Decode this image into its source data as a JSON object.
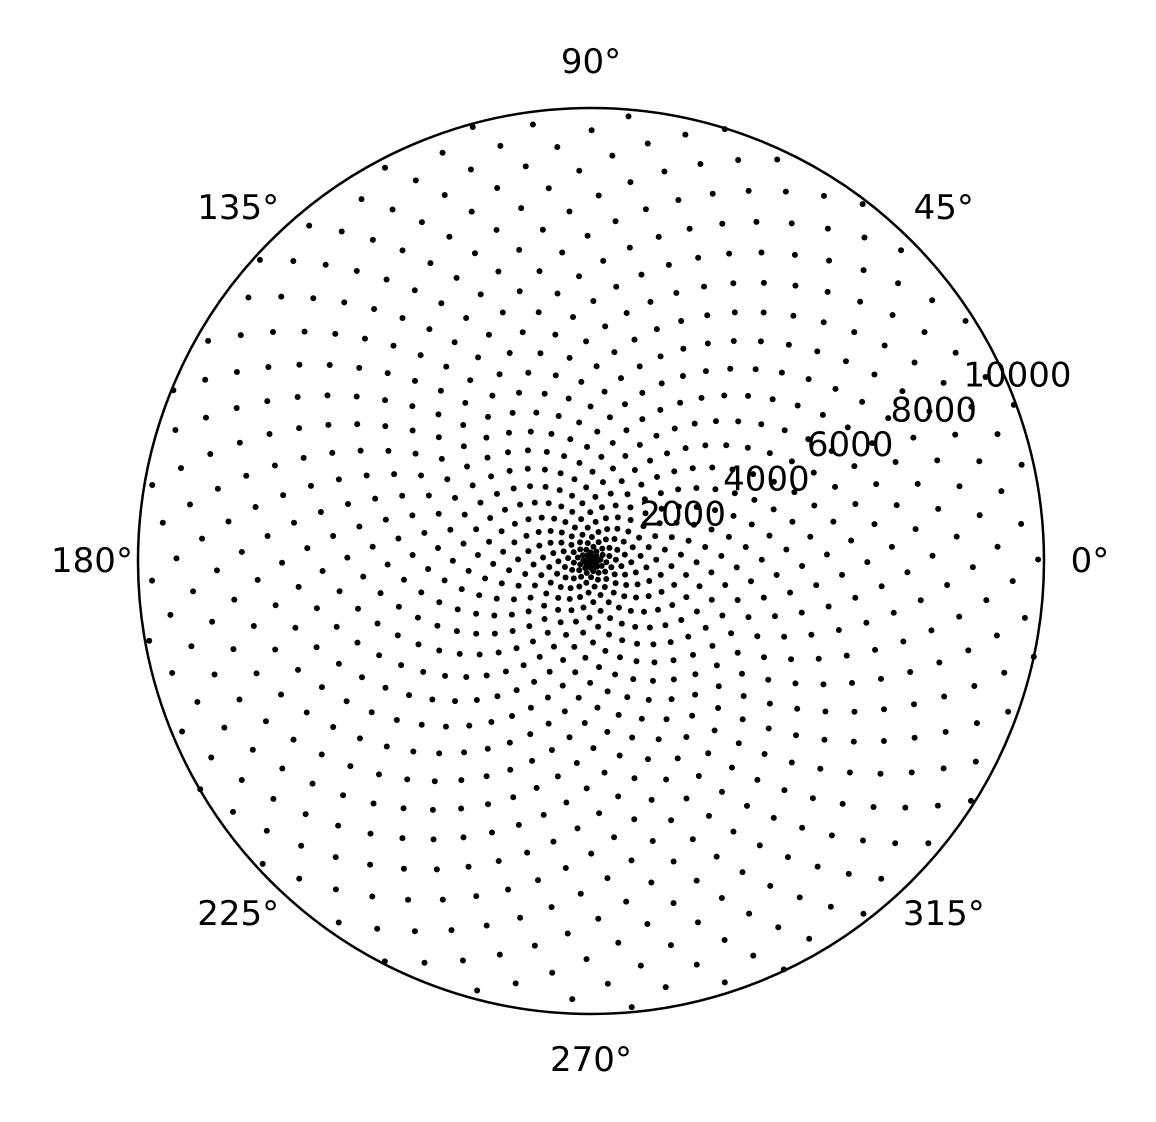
{
  "chart_data": {
    "type": "scatter",
    "projection": "polar",
    "title": "",
    "grid": false,
    "colors": {
      "points": "#000000",
      "frame": "#000000",
      "background": "#ffffff"
    },
    "theta_ticks": [
      {
        "deg": 0,
        "label": "0°"
      },
      {
        "deg": 45,
        "label": "45°"
      },
      {
        "deg": 90,
        "label": "90°"
      },
      {
        "deg": 135,
        "label": "135°"
      },
      {
        "deg": 180,
        "label": "180°"
      },
      {
        "deg": 225,
        "label": "225°"
      },
      {
        "deg": 270,
        "label": "270°"
      },
      {
        "deg": 315,
        "label": "315°"
      }
    ],
    "r_ticks": [
      {
        "value": 2000,
        "label": "2000"
      },
      {
        "value": 4000,
        "label": "4000"
      },
      {
        "value": 6000,
        "label": "6000"
      },
      {
        "value": 8000,
        "label": "8000"
      },
      {
        "value": 10000,
        "label": "10000"
      }
    ],
    "r_label_angle_deg": 22.5,
    "rlim": [
      0,
      10000
    ],
    "series": [
      {
        "marker": "dot",
        "golden_angle_sequence": {
          "n_start": 1,
          "n_end": 1000,
          "angle_step_deg": 137.5078,
          "radius": "10 * n"
        }
      }
    ]
  }
}
